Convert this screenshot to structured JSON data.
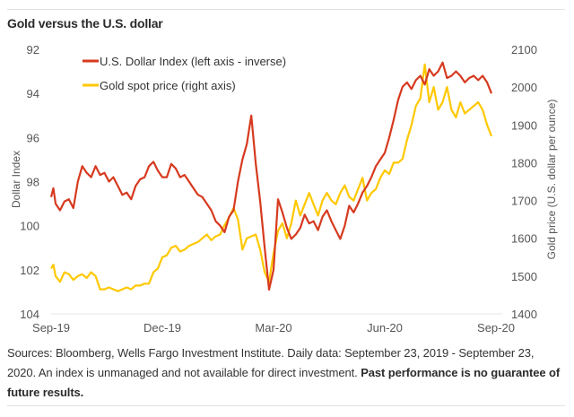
{
  "chart_data": {
    "type": "line",
    "title": "Gold versus the U.S. dollar",
    "xlabel": "",
    "x_ticks": [
      "Sep-19",
      "Dec-19",
      "Mar-20",
      "Jun-20",
      "Sep-20"
    ],
    "x_range": [
      "2019-09-23",
      "2020-09-23"
    ],
    "left_axis": {
      "label": "Dollar Index",
      "ticks": [
        92,
        94,
        96,
        98,
        100,
        102,
        104
      ],
      "range": [
        92,
        104
      ],
      "inverted": true
    },
    "right_axis": {
      "label": "Gold price (U.S. dollar per ounce)",
      "ticks": [
        2100,
        2000,
        1900,
        1800,
        1700,
        1600,
        1500,
        1400
      ],
      "range": [
        1400,
        2100
      ]
    },
    "legend": {
      "placement": "top-left",
      "entries": [
        {
          "label": "U.S. Dollar Index (left axis - inverse)",
          "color": "#d63a1f"
        },
        {
          "label": "Gold spot price (right axis)",
          "color": "#ffc800"
        }
      ]
    },
    "grid": false,
    "series": [
      {
        "name": "U.S. Dollar Index",
        "axis": "left",
        "color": "#d63a1f",
        "t": [
          0,
          0.005,
          0.01,
          0.02,
          0.03,
          0.04,
          0.05,
          0.06,
          0.07,
          0.08,
          0.09,
          0.1,
          0.11,
          0.12,
          0.13,
          0.14,
          0.15,
          0.16,
          0.17,
          0.18,
          0.19,
          0.2,
          0.21,
          0.22,
          0.23,
          0.24,
          0.25,
          0.26,
          0.27,
          0.28,
          0.29,
          0.3,
          0.31,
          0.32,
          0.33,
          0.34,
          0.35,
          0.36,
          0.37,
          0.38,
          0.39,
          0.4,
          0.41,
          0.42,
          0.43,
          0.44,
          0.45,
          0.46,
          0.47,
          0.48,
          0.49,
          0.5,
          0.51,
          0.52,
          0.53,
          0.54,
          0.55,
          0.56,
          0.57,
          0.58,
          0.59,
          0.6,
          0.61,
          0.62,
          0.63,
          0.64,
          0.65,
          0.66,
          0.67,
          0.68,
          0.69,
          0.7,
          0.71,
          0.72,
          0.73,
          0.74,
          0.75,
          0.76,
          0.77,
          0.78,
          0.79,
          0.8,
          0.81,
          0.82,
          0.83,
          0.84,
          0.85,
          0.86,
          0.87,
          0.88,
          0.89,
          0.9,
          0.91,
          0.92,
          0.93,
          0.94,
          0.95,
          0.96,
          0.97,
          0.98,
          0.99,
          1.0
        ],
        "values": [
          98.7,
          98.3,
          99.0,
          99.3,
          98.9,
          98.8,
          99.2,
          98.0,
          97.3,
          97.6,
          97.8,
          97.3,
          97.7,
          97.6,
          98.0,
          97.8,
          98.2,
          98.6,
          98.5,
          98.8,
          98.2,
          97.9,
          97.8,
          97.3,
          97.1,
          97.5,
          97.8,
          97.8,
          97.2,
          97.4,
          97.8,
          97.7,
          98.0,
          98.3,
          98.6,
          98.7,
          99.0,
          99.3,
          99.8,
          100.0,
          100.3,
          99.6,
          99.3,
          98.0,
          97.0,
          96.3,
          95.0,
          97.2,
          98.9,
          101.0,
          102.9,
          102.0,
          98.8,
          99.4,
          100.1,
          100.6,
          100.4,
          100.1,
          99.5,
          99.9,
          99.8,
          100.2,
          99.6,
          99.3,
          99.8,
          100.2,
          100.6,
          100.0,
          99.1,
          99.4,
          99.0,
          98.5,
          98.2,
          97.8,
          97.3,
          97.0,
          96.7,
          96.0,
          95.2,
          94.3,
          93.7,
          93.5,
          93.8,
          93.4,
          93.2,
          93.6,
          92.9,
          93.2,
          93.0,
          92.6,
          93.3,
          93.2,
          93.0,
          93.2,
          93.5,
          93.3,
          93.2,
          93.4,
          93.2,
          93.5,
          94.0
        ],
        "note": "Values approximate, read from plot (inverse axis)"
      },
      {
        "name": "Gold spot price",
        "axis": "right",
        "color": "#ffc800",
        "t": [
          0,
          0.005,
          0.01,
          0.02,
          0.03,
          0.04,
          0.05,
          0.06,
          0.07,
          0.08,
          0.09,
          0.1,
          0.11,
          0.12,
          0.13,
          0.14,
          0.15,
          0.16,
          0.17,
          0.18,
          0.19,
          0.2,
          0.21,
          0.22,
          0.23,
          0.24,
          0.25,
          0.26,
          0.27,
          0.28,
          0.29,
          0.3,
          0.31,
          0.32,
          0.33,
          0.34,
          0.35,
          0.36,
          0.37,
          0.38,
          0.39,
          0.4,
          0.41,
          0.42,
          0.43,
          0.44,
          0.45,
          0.46,
          0.47,
          0.48,
          0.49,
          0.5,
          0.51,
          0.52,
          0.53,
          0.54,
          0.55,
          0.56,
          0.57,
          0.58,
          0.59,
          0.6,
          0.61,
          0.62,
          0.63,
          0.64,
          0.65,
          0.66,
          0.67,
          0.68,
          0.69,
          0.7,
          0.71,
          0.72,
          0.73,
          0.74,
          0.75,
          0.76,
          0.77,
          0.78,
          0.79,
          0.8,
          0.81,
          0.82,
          0.83,
          0.84,
          0.85,
          0.86,
          0.87,
          0.88,
          0.89,
          0.9,
          0.91,
          0.92,
          0.93,
          0.94,
          0.95,
          0.96,
          0.97,
          0.98,
          0.99,
          1.0
        ],
        "values": [
          1520,
          1530,
          1500,
          1485,
          1510,
          1505,
          1490,
          1500,
          1505,
          1495,
          1510,
          1500,
          1465,
          1465,
          1470,
          1465,
          1460,
          1465,
          1470,
          1465,
          1475,
          1475,
          1480,
          1480,
          1510,
          1520,
          1550,
          1555,
          1575,
          1580,
          1565,
          1570,
          1580,
          1585,
          1590,
          1600,
          1610,
          1595,
          1605,
          1610,
          1635,
          1655,
          1680,
          1650,
          1570,
          1600,
          1605,
          1610,
          1570,
          1510,
          1485,
          1560,
          1620,
          1640,
          1600,
          1640,
          1700,
          1660,
          1690,
          1720,
          1690,
          1660,
          1700,
          1720,
          1700,
          1690,
          1720,
          1740,
          1710,
          1700,
          1730,
          1760,
          1700,
          1720,
          1730,
          1760,
          1780,
          1770,
          1800,
          1800,
          1810,
          1860,
          1900,
          1950,
          1970,
          2060,
          1960,
          2000,
          1940,
          1960,
          2000,
          1940,
          1920,
          1960,
          1930,
          1940,
          1950,
          1960,
          1940,
          1900,
          1870
        ],
        "note": "Values approximate, read from plot"
      }
    ]
  },
  "footer": {
    "sources": "Sources: Bloomberg, Wells Fargo Investment Institute. Daily data: September 23, 2019 - September 23, 2020. An index is unmanaged and not available for direct investment. ",
    "disclaimer": "Past performance is no guarantee of future results."
  }
}
